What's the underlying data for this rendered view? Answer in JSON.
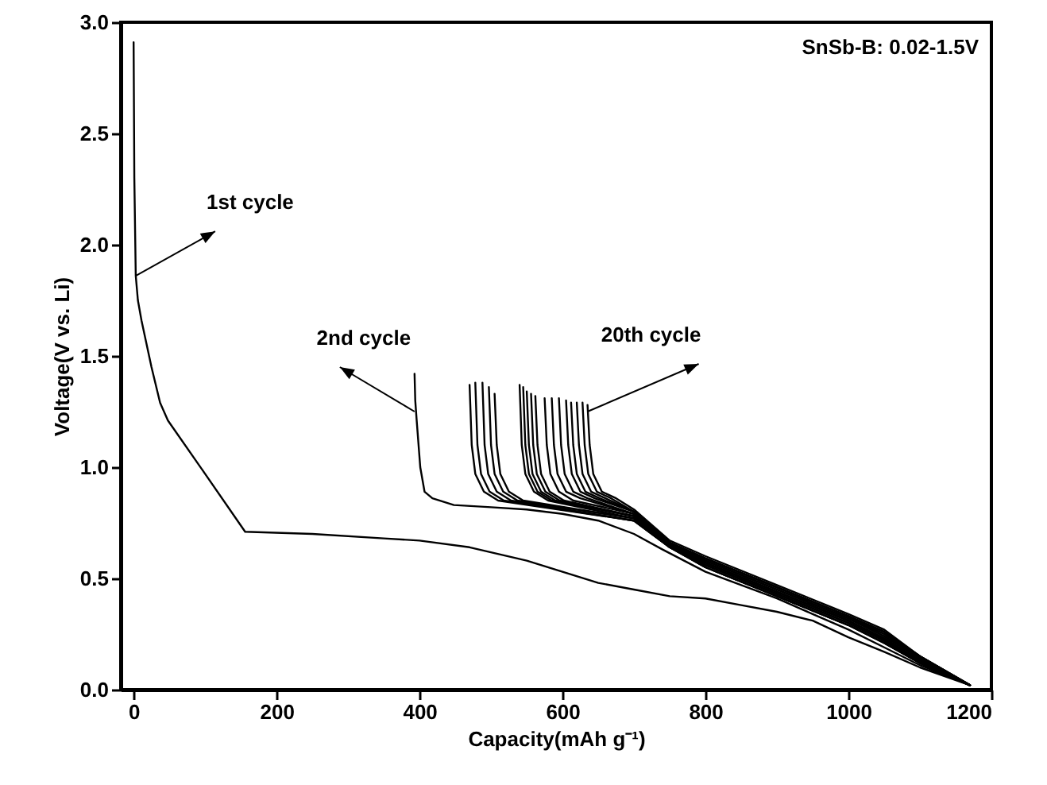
{
  "chart_data": {
    "type": "line",
    "xlabel": "Capacity(mAh g⁻¹)",
    "ylabel": "Voltage(V vs. Li)",
    "xlim": [
      -18,
      1200
    ],
    "xticks": [
      0,
      200,
      400,
      600,
      800,
      1000,
      1200
    ],
    "ylim": [
      0,
      3.0
    ],
    "yticks": [
      {
        "value": 0,
        "label": "0.0"
      },
      {
        "value": 0.5,
        "label": "0.5"
      },
      {
        "value": 1,
        "label": "1.0"
      },
      {
        "value": 1.5,
        "label": "1.5"
      },
      {
        "value": 2,
        "label": "2.0"
      },
      {
        "value": 2.5,
        "label": "2.5"
      },
      {
        "value": 3,
        "label": "3.0"
      }
    ],
    "line_style": "solid",
    "marker": "none",
    "annotations": [
      "SnSb-B: 0.02-1.5V",
      {
        "text": "1st cycle",
        "x": 3,
        "y": 1.86
      },
      {
        "text": "2nd cycle",
        "x": 393,
        "y": 1.25
      },
      {
        "text": "20th cycle",
        "x": 635,
        "y": 1.25
      }
    ],
    "series": [
      {
        "color": "#000000",
        "x": [
          0,
          1,
          3,
          6,
          11,
          25,
          37,
          48,
          100,
          156,
          250,
          350,
          400,
          470,
          550,
          600,
          650,
          700,
          750,
          800,
          850,
          900,
          950,
          1000,
          1050,
          1100,
          1170
        ],
        "values": [
          2.91,
          2.3,
          1.86,
          1.75,
          1.66,
          1.45,
          1.29,
          1.21,
          0.97,
          0.71,
          0.7,
          0.68,
          0.67,
          0.64,
          0.58,
          0.53,
          0.48,
          0.45,
          0.42,
          0.41,
          0.38,
          0.35,
          0.31,
          0.235,
          0.17,
          0.1,
          0.02
        ]
      },
      {
        "color": "#000000",
        "x": [
          393,
          394,
          396,
          401,
          407,
          418,
          448,
          500,
          550,
          600,
          650,
          700,
          740,
          800,
          850,
          900,
          950,
          1000,
          1050,
          1100,
          1170
        ],
        "values": [
          1.42,
          1.3,
          1.21,
          1.0,
          0.89,
          0.86,
          0.83,
          0.82,
          0.81,
          0.79,
          0.76,
          0.7,
          0.63,
          0.53,
          0.47,
          0.41,
          0.34,
          0.27,
          0.19,
          0.11,
          0.02
        ]
      },
      {
        "color": "#000000",
        "x": [
          470,
          473,
          478,
          490,
          510,
          700,
          750,
          800,
          900,
          1000,
          1050,
          1100,
          1170
        ],
        "values": [
          1.37,
          1.1,
          0.97,
          0.89,
          0.85,
          0.76,
          0.64,
          0.55,
          0.42,
          0.29,
          0.21,
          0.12,
          0.02
        ]
      },
      {
        "color": "#000000",
        "x": [
          478,
          481,
          486,
          498,
          518,
          700,
          750,
          800,
          900,
          1000,
          1050,
          1100,
          1170
        ],
        "values": [
          1.38,
          1.1,
          0.97,
          0.89,
          0.85,
          0.76,
          0.64,
          0.55,
          0.42,
          0.29,
          0.21,
          0.12,
          0.02
        ]
      },
      {
        "color": "#000000",
        "x": [
          488,
          491,
          496,
          508,
          528,
          700,
          750,
          800,
          900,
          1000,
          1050,
          1100,
          1170
        ],
        "values": [
          1.38,
          1.1,
          0.97,
          0.89,
          0.85,
          0.76,
          0.64,
          0.55,
          0.42,
          0.29,
          0.21,
          0.12,
          0.02
        ]
      },
      {
        "color": "#000000",
        "x": [
          497,
          500,
          505,
          517,
          537,
          700,
          750,
          800,
          900,
          1000,
          1050,
          1100,
          1170
        ],
        "values": [
          1.36,
          1.1,
          0.97,
          0.89,
          0.85,
          0.77,
          0.64,
          0.56,
          0.43,
          0.3,
          0.22,
          0.12,
          0.02
        ]
      },
      {
        "color": "#000000",
        "x": [
          505,
          508,
          513,
          525,
          545,
          700,
          750,
          800,
          900,
          1000,
          1050,
          1100,
          1170
        ],
        "values": [
          1.33,
          1.1,
          0.97,
          0.89,
          0.85,
          0.77,
          0.64,
          0.56,
          0.43,
          0.3,
          0.22,
          0.12,
          0.02
        ]
      },
      {
        "color": "#000000",
        "x": [
          540,
          543,
          548,
          560,
          580,
          700,
          750,
          800,
          900,
          1000,
          1050,
          1100,
          1170
        ],
        "values": [
          1.37,
          1.1,
          0.97,
          0.89,
          0.85,
          0.77,
          0.65,
          0.56,
          0.43,
          0.3,
          0.22,
          0.13,
          0.02
        ]
      },
      {
        "color": "#000000",
        "x": [
          545,
          548,
          553,
          565,
          585,
          700,
          750,
          800,
          900,
          1000,
          1050,
          1100,
          1170
        ],
        "values": [
          1.36,
          1.1,
          0.97,
          0.89,
          0.85,
          0.78,
          0.65,
          0.57,
          0.44,
          0.31,
          0.23,
          0.13,
          0.02
        ]
      },
      {
        "color": "#000000",
        "x": [
          550,
          553,
          558,
          570,
          590,
          700,
          750,
          800,
          900,
          1000,
          1050,
          1100,
          1170
        ],
        "values": [
          1.34,
          1.1,
          0.97,
          0.89,
          0.85,
          0.78,
          0.65,
          0.57,
          0.44,
          0.31,
          0.23,
          0.13,
          0.02
        ]
      },
      {
        "color": "#000000",
        "x": [
          556,
          559,
          564,
          576,
          596,
          700,
          750,
          800,
          900,
          1000,
          1050,
          1100,
          1170
        ],
        "values": [
          1.33,
          1.1,
          0.97,
          0.89,
          0.85,
          0.78,
          0.65,
          0.57,
          0.44,
          0.31,
          0.23,
          0.13,
          0.02
        ]
      },
      {
        "color": "#000000",
        "x": [
          562,
          565,
          570,
          582,
          602,
          700,
          750,
          800,
          900,
          1000,
          1050,
          1100,
          1170
        ],
        "values": [
          1.32,
          1.1,
          0.97,
          0.89,
          0.85,
          0.78,
          0.65,
          0.57,
          0.44,
          0.31,
          0.23,
          0.13,
          0.02
        ]
      },
      {
        "color": "#000000",
        "x": [
          575,
          578,
          583,
          595,
          615,
          700,
          750,
          800,
          900,
          1000,
          1050,
          1100,
          1170
        ],
        "values": [
          1.31,
          1.1,
          0.97,
          0.89,
          0.85,
          0.79,
          0.65,
          0.58,
          0.45,
          0.32,
          0.24,
          0.14,
          0.02
        ]
      },
      {
        "color": "#000000",
        "x": [
          585,
          588,
          593,
          605,
          625,
          700,
          750,
          800,
          900,
          1000,
          1050,
          1100,
          1170
        ],
        "values": [
          1.31,
          1.1,
          0.97,
          0.89,
          0.86,
          0.79,
          0.66,
          0.58,
          0.45,
          0.32,
          0.24,
          0.14,
          0.02
        ]
      },
      {
        "color": "#000000",
        "x": [
          595,
          598,
          603,
          615,
          635,
          700,
          750,
          800,
          900,
          1000,
          1050,
          1100,
          1170
        ],
        "values": [
          1.31,
          1.1,
          0.97,
          0.89,
          0.86,
          0.79,
          0.66,
          0.58,
          0.45,
          0.32,
          0.25,
          0.14,
          0.02
        ]
      },
      {
        "color": "#000000",
        "x": [
          605,
          608,
          613,
          625,
          645,
          700,
          750,
          800,
          900,
          1000,
          1050,
          1100,
          1170
        ],
        "values": [
          1.3,
          1.1,
          0.97,
          0.89,
          0.86,
          0.8,
          0.66,
          0.59,
          0.46,
          0.33,
          0.25,
          0.15,
          0.02
        ]
      },
      {
        "color": "#000000",
        "x": [
          612,
          615,
          620,
          632,
          652,
          700,
          750,
          800,
          900,
          1000,
          1050,
          1100,
          1170
        ],
        "values": [
          1.29,
          1.1,
          0.97,
          0.89,
          0.86,
          0.8,
          0.66,
          0.59,
          0.46,
          0.33,
          0.26,
          0.15,
          0.02
        ]
      },
      {
        "color": "#000000",
        "x": [
          620,
          623,
          628,
          640,
          660,
          700,
          750,
          800,
          900,
          1000,
          1050,
          1100,
          1170
        ],
        "values": [
          1.29,
          1.1,
          0.97,
          0.89,
          0.86,
          0.8,
          0.66,
          0.59,
          0.46,
          0.33,
          0.26,
          0.15,
          0.02
        ]
      },
      {
        "color": "#000000",
        "x": [
          628,
          631,
          636,
          648,
          668,
          700,
          750,
          800,
          900,
          1000,
          1050,
          1100,
          1170
        ],
        "values": [
          1.29,
          1.1,
          0.97,
          0.89,
          0.86,
          0.8,
          0.66,
          0.59,
          0.46,
          0.33,
          0.26,
          0.15,
          0.02
        ]
      },
      {
        "color": "#000000",
        "x": [
          635,
          638,
          643,
          655,
          675,
          700,
          750,
          800,
          900,
          1000,
          1050,
          1100,
          1170
        ],
        "values": [
          1.28,
          1.1,
          0.97,
          0.89,
          0.86,
          0.81,
          0.67,
          0.6,
          0.47,
          0.34,
          0.27,
          0.15,
          0.02
        ]
      }
    ]
  }
}
